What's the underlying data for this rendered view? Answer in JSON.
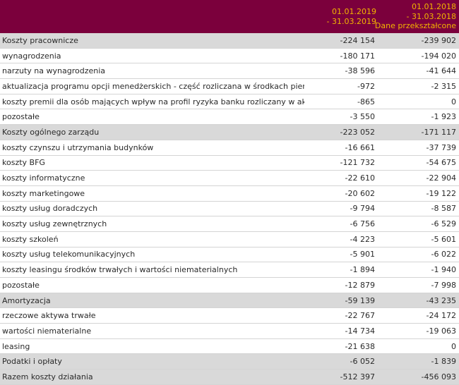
{
  "header": {
    "col1_line1": "01.01.2019",
    "col1_line2": "- 31.03.2019",
    "col2_line1": "01.01.2018",
    "col2_line2": "- 31.03.2018",
    "col2_line3": "Dane przekształcone"
  },
  "rows": [
    {
      "label": "Koszty pracownicze",
      "v1": "-224 154",
      "v2": "-239 902",
      "type": "cat"
    },
    {
      "label": "wynagrodzenia",
      "v1": "-180 171",
      "v2": "-194 020",
      "type": "item"
    },
    {
      "label": "narzuty na wynagrodzenia",
      "v1": "-38 596",
      "v2": "-41 644",
      "type": "item"
    },
    {
      "label": "aktualizacja programu opcji menedżerskich - część rozliczana w środkach pieniężnych",
      "v1": "-972",
      "v2": "-2 315",
      "type": "item"
    },
    {
      "label": "koszty premii dla osób mających wpływ na profil ryzyka banku rozliczany w akcjach fantomowych",
      "v1": "-865",
      "v2": "0",
      "type": "item"
    },
    {
      "label": "pozostałe",
      "v1": "-3 550",
      "v2": "-1 923",
      "type": "item"
    },
    {
      "label": "Koszty ogólnego zarządu",
      "v1": "-223 052",
      "v2": "-171 117",
      "type": "cat"
    },
    {
      "label": "koszty czynszu i utrzymania budynków",
      "v1": "-16 661",
      "v2": "-37 739",
      "type": "item"
    },
    {
      "label": "koszty BFG",
      "v1": "-121 732",
      "v2": "-54 675",
      "type": "item"
    },
    {
      "label": "koszty informatyczne",
      "v1": "-22 610",
      "v2": "-22 904",
      "type": "item"
    },
    {
      "label": "koszty marketingowe",
      "v1": "-20 602",
      "v2": "-19 122",
      "type": "item"
    },
    {
      "label": "koszty usług doradczych",
      "v1": "-9 794",
      "v2": "-8 587",
      "type": "item"
    },
    {
      "label": "koszty usług zewnętrznych",
      "v1": "-6 756",
      "v2": "-6 529",
      "type": "item"
    },
    {
      "label": "koszty szkoleń",
      "v1": "-4 223",
      "v2": "-5 601",
      "type": "item"
    },
    {
      "label": "koszty usług telekomunikacyjnych",
      "v1": "-5 901",
      "v2": "-6 022",
      "type": "item"
    },
    {
      "label": "koszty leasingu środków trwałych i wartości niematerialnych",
      "v1": "-1 894",
      "v2": "-1 940",
      "type": "item"
    },
    {
      "label": "pozostałe",
      "v1": "-12 879",
      "v2": "-7 998",
      "type": "item"
    },
    {
      "label": "Amortyzacja",
      "v1": "-59 139",
      "v2": "-43 235",
      "type": "cat"
    },
    {
      "label": "rzeczowe aktywa trwałe",
      "v1": "-22 767",
      "v2": "-24 172",
      "type": "item"
    },
    {
      "label": "wartości niematerialne",
      "v1": "-14 734",
      "v2": "-19 063",
      "type": "item"
    },
    {
      "label": "leasing",
      "v1": "-21 638",
      "v2": "0",
      "type": "item"
    },
    {
      "label": "Podatki i opłaty",
      "v1": "-6 052",
      "v2": "-1 839",
      "type": "cat"
    },
    {
      "label": "Razem koszty działania",
      "v1": "-512 397",
      "v2": "-456 093",
      "type": "total"
    }
  ]
}
